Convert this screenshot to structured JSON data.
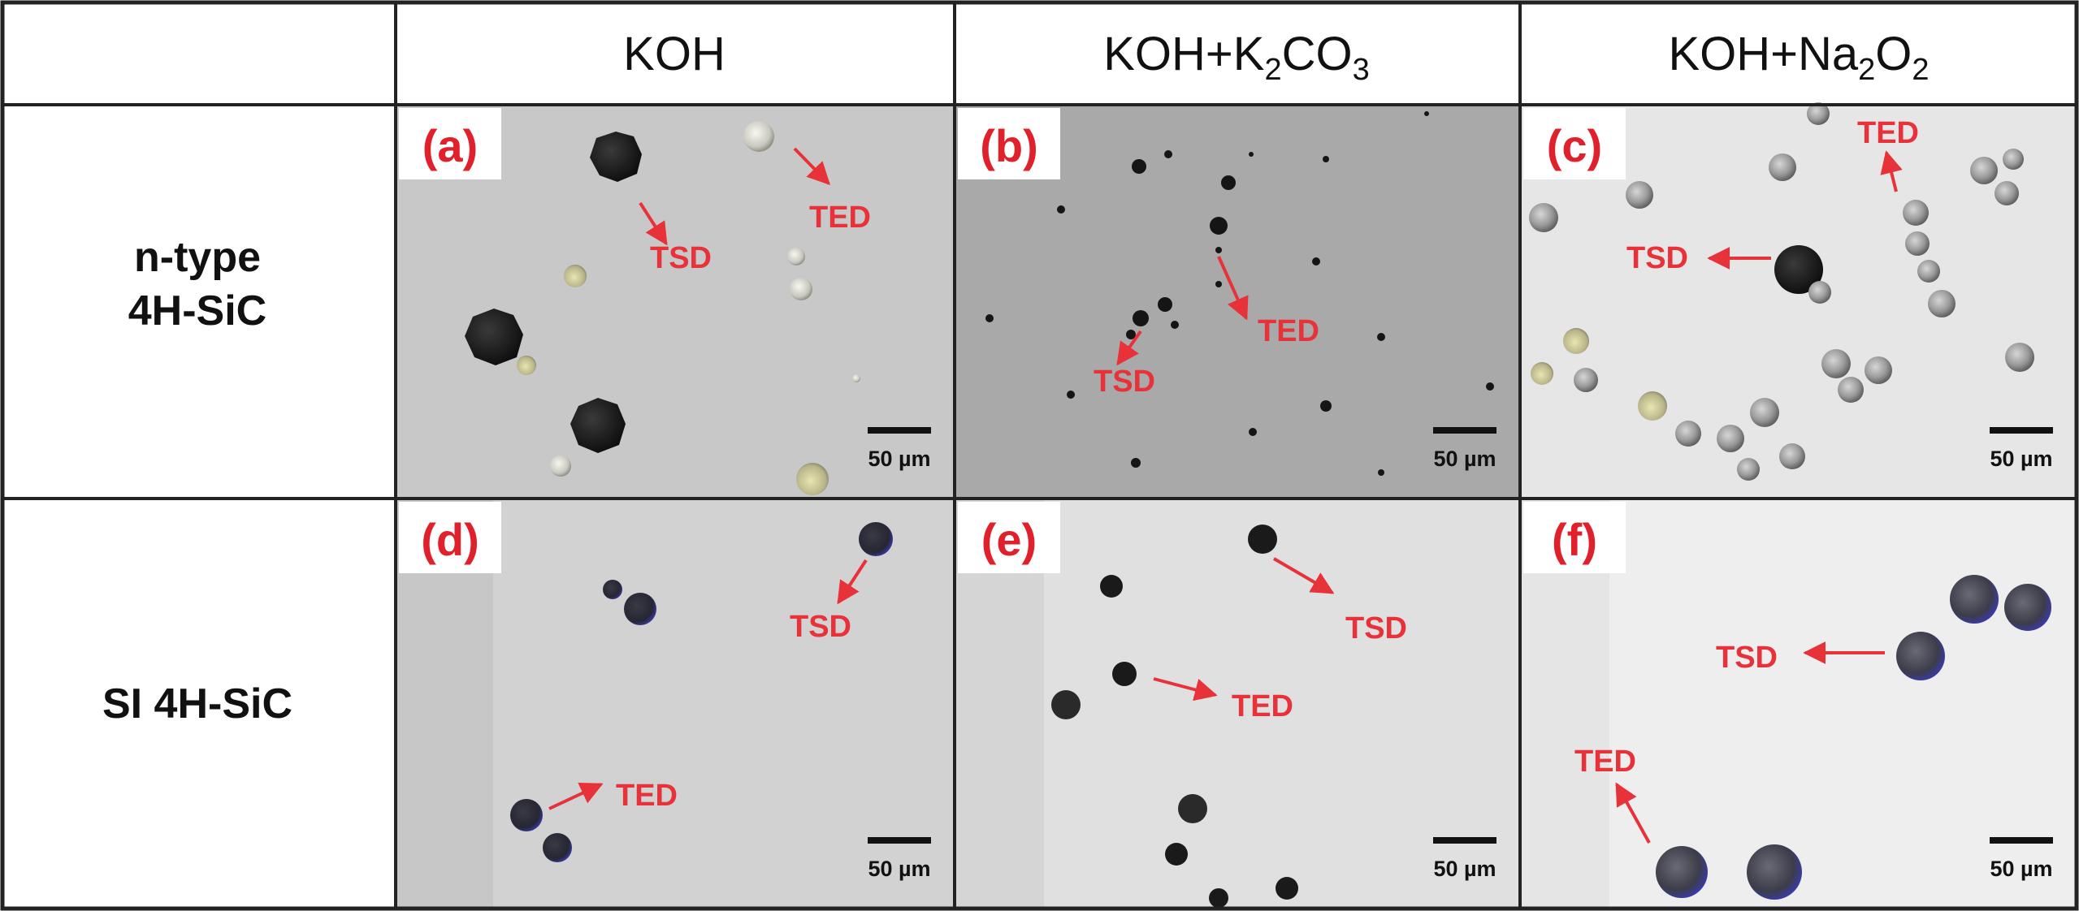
{
  "columns": [
    {
      "id": "koh",
      "base": "KOH",
      "parts": []
    },
    {
      "id": "k2co3",
      "base": "KOH+K",
      "parts": [
        {
          "t": "2",
          "sub": true
        },
        {
          "t": "CO",
          "sub": false
        },
        {
          "t": "3",
          "sub": true
        }
      ]
    },
    {
      "id": "na2o2",
      "base": "KOH+Na",
      "parts": [
        {
          "t": "2",
          "sub": true
        },
        {
          "t": "O",
          "sub": false
        },
        {
          "t": "2",
          "sub": true
        }
      ]
    }
  ],
  "rows": [
    {
      "id": "n-type",
      "lines": [
        "n-type",
        "4H-SiC"
      ]
    },
    {
      "id": "si",
      "lines": [
        "SI 4H-SiC"
      ]
    }
  ],
  "panels": [
    {
      "label": "(a)",
      "bg": "#c8c8c8",
      "annotations": [
        {
          "text": "TED"
        },
        {
          "text": "TSD"
        }
      ]
    },
    {
      "label": "(b)",
      "bg": "#a9a9a9",
      "annotations": [
        {
          "text": "TED"
        },
        {
          "text": "TSD"
        }
      ]
    },
    {
      "label": "(c)",
      "bg": "#e6e6e6",
      "annotations": [
        {
          "text": "TED"
        },
        {
          "text": "TSD"
        }
      ]
    },
    {
      "label": "(d)",
      "bg": "#d2d2d2",
      "annotations": [
        {
          "text": "TSD"
        },
        {
          "text": "TED"
        }
      ]
    },
    {
      "label": "(e)",
      "bg": "#e0e0e0",
      "annotations": [
        {
          "text": "TSD"
        },
        {
          "text": "TED"
        }
      ]
    },
    {
      "label": "(f)",
      "bg": "#eeeeee",
      "annotations": [
        {
          "text": "TSD"
        },
        {
          "text": "TED"
        }
      ]
    }
  ],
  "scale_bar_label": "50 µm",
  "colors": {
    "annotation": "#e8323a",
    "panel_label": "#e0202a",
    "border": "#222222"
  }
}
